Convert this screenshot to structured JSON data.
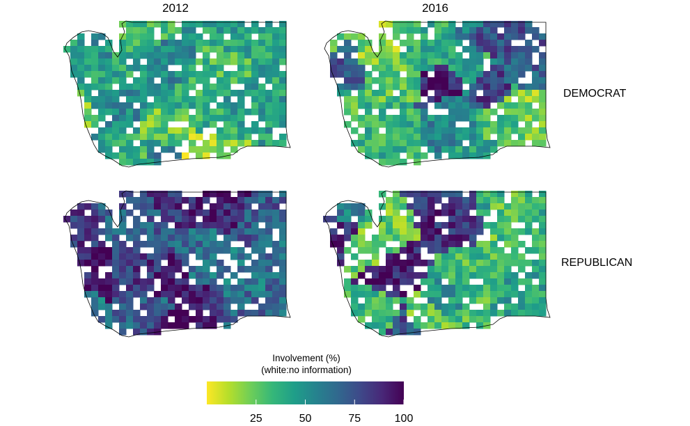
{
  "columns": [
    "2012",
    "2016"
  ],
  "rows": [
    "DEMOCRAT",
    "REPUBLICAN"
  ],
  "legend": {
    "title_line1": "Involvement (%)",
    "title_line2": "(white:no information)",
    "ticks": [
      "25",
      "50",
      "75",
      "100"
    ],
    "tick_values": [
      25,
      50,
      75,
      100
    ],
    "range": [
      0,
      100
    ],
    "colors": [
      "#fde725",
      "#b5de2b",
      "#6ece58",
      "#35b779",
      "#1f9e89",
      "#26828e",
      "#31688e",
      "#3e4989",
      "#482878",
      "#440154"
    ]
  },
  "map_data": {
    "region": "Washington state precincts",
    "panels": [
      {
        "row": "DEMOCRAT",
        "col": "2012",
        "dominant_range": [
          10,
          55
        ]
      },
      {
        "row": "DEMOCRAT",
        "col": "2016",
        "dominant_range": [
          10,
          95
        ]
      },
      {
        "row": "REPUBLICAN",
        "col": "2012",
        "dominant_range": [
          45,
          100
        ]
      },
      {
        "row": "REPUBLICAN",
        "col": "2016",
        "dominant_range": [
          20,
          100
        ]
      }
    ]
  }
}
